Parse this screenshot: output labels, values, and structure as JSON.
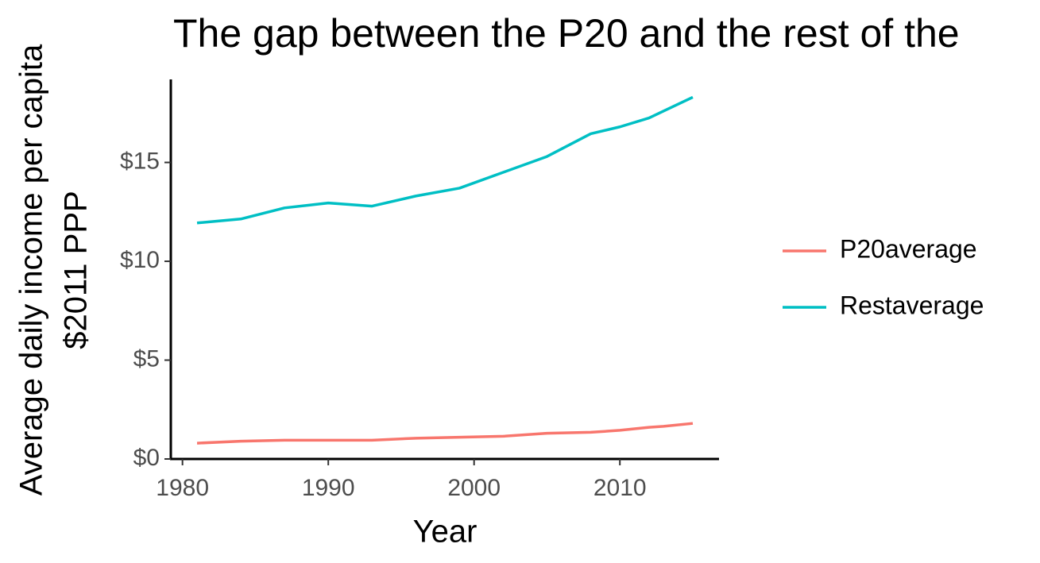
{
  "chart_data": {
    "type": "line",
    "title": "The gap between the P20 and the rest of the",
    "xlabel": "Year",
    "ylabel": [
      "Average daily income per capita",
      "$2011 PPP"
    ],
    "x": [
      1981,
      1984,
      1987,
      1990,
      1993,
      1996,
      1999,
      2002,
      2005,
      2008,
      2010,
      2012,
      2013,
      2015
    ],
    "series": [
      {
        "name": "P20average",
        "color": "#F8766D",
        "values": [
          0.8,
          0.9,
          0.95,
          0.95,
          0.95,
          1.05,
          1.1,
          1.15,
          1.3,
          1.35,
          1.45,
          1.6,
          1.65,
          1.8
        ]
      },
      {
        "name": "Restaverage",
        "color": "#00BFC4",
        "values": [
          11.94,
          12.14,
          12.7,
          12.95,
          12.79,
          13.3,
          13.7,
          14.5,
          15.3,
          16.45,
          16.8,
          17.25,
          17.6,
          18.3
        ]
      }
    ],
    "xlim": [
      1979.2,
      2016.8
    ],
    "ylim": [
      0,
      19.2
    ],
    "xticks": [
      1980,
      1990,
      2000,
      2010
    ],
    "yticks": [
      {
        "value": 0,
        "label": "$0"
      },
      {
        "value": 5,
        "label": "$5"
      },
      {
        "value": 10,
        "label": "$10"
      },
      {
        "value": 15,
        "label": "$15"
      }
    ],
    "legend": "right",
    "grid": false
  }
}
